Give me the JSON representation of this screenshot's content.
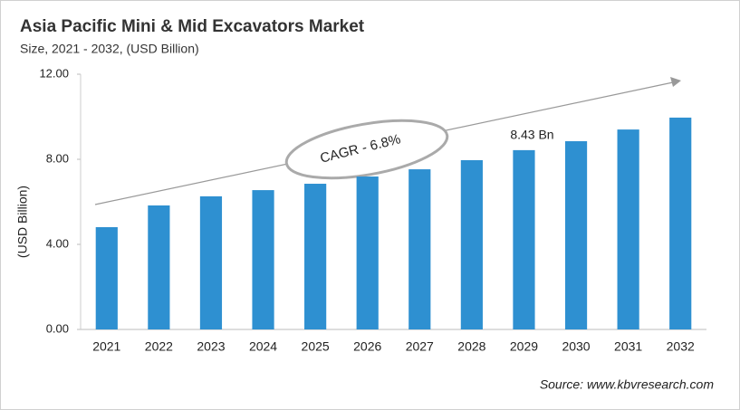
{
  "chart_data": {
    "type": "bar",
    "title": "Asia Pacific Mini & Mid Excavators Market",
    "subtitle": "Size, 2021 - 2032, (USD Billion)",
    "y_label": "(USD Billion)",
    "categories": [
      "2021",
      "2022",
      "2023",
      "2024",
      "2025",
      "2026",
      "2027",
      "2028",
      "2029",
      "2030",
      "2031",
      "2032"
    ],
    "values": [
      4.81,
      5.83,
      6.26,
      6.55,
      6.85,
      7.19,
      7.53,
      7.96,
      8.43,
      8.85,
      9.4,
      9.96
    ],
    "value_labels": [
      null,
      null,
      null,
      null,
      null,
      null,
      null,
      null,
      "8.43 Bn",
      null,
      null,
      null
    ],
    "color": "#2e90d1",
    "ylim": [
      0,
      12
    ],
    "yticks": [
      {
        "value": 0,
        "label": "0.00"
      },
      {
        "value": 4,
        "label": "4.00"
      },
      {
        "value": 8,
        "label": "8.00"
      },
      {
        "value": 12,
        "label": "12.00"
      }
    ],
    "grid": false,
    "annotations": [
      "CAGR - 6.8%"
    ],
    "source": "Source: www.kbvresearch.com"
  }
}
